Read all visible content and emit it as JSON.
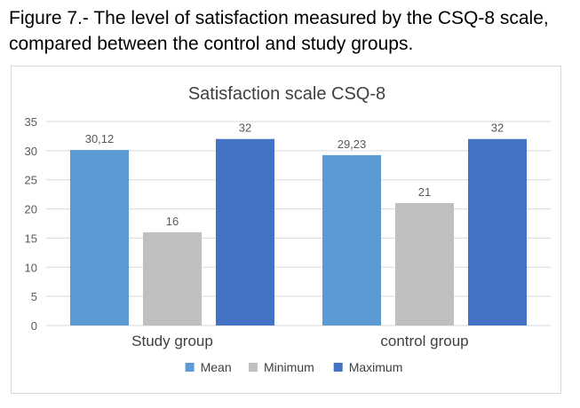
{
  "caption": {
    "line1": "Figure 7.- The level of satisfaction measured by the CSQ-8 scale,",
    "line2": "compared between the control and study groups."
  },
  "chart_data": {
    "type": "bar",
    "title": "Satisfaction scale CSQ-8",
    "categories": [
      "Study group",
      "control group"
    ],
    "series": [
      {
        "name": "Mean",
        "color": "#5b9bd5",
        "values": [
          30.12,
          29.23
        ],
        "labels": [
          "30,12",
          "29,23"
        ]
      },
      {
        "name": "Minimum",
        "color": "#bfbfbf",
        "values": [
          16,
          21
        ],
        "labels": [
          "16",
          "21"
        ]
      },
      {
        "name": "Maximum",
        "color": "#4472c4",
        "values": [
          32,
          32
        ],
        "labels": [
          "32",
          "32"
        ]
      }
    ],
    "ylim": [
      0,
      35
    ],
    "yticks": [
      0,
      5,
      10,
      15,
      20,
      25,
      30,
      35
    ],
    "grid": true,
    "legend_position": "bottom",
    "xlabel": "",
    "ylabel": ""
  }
}
